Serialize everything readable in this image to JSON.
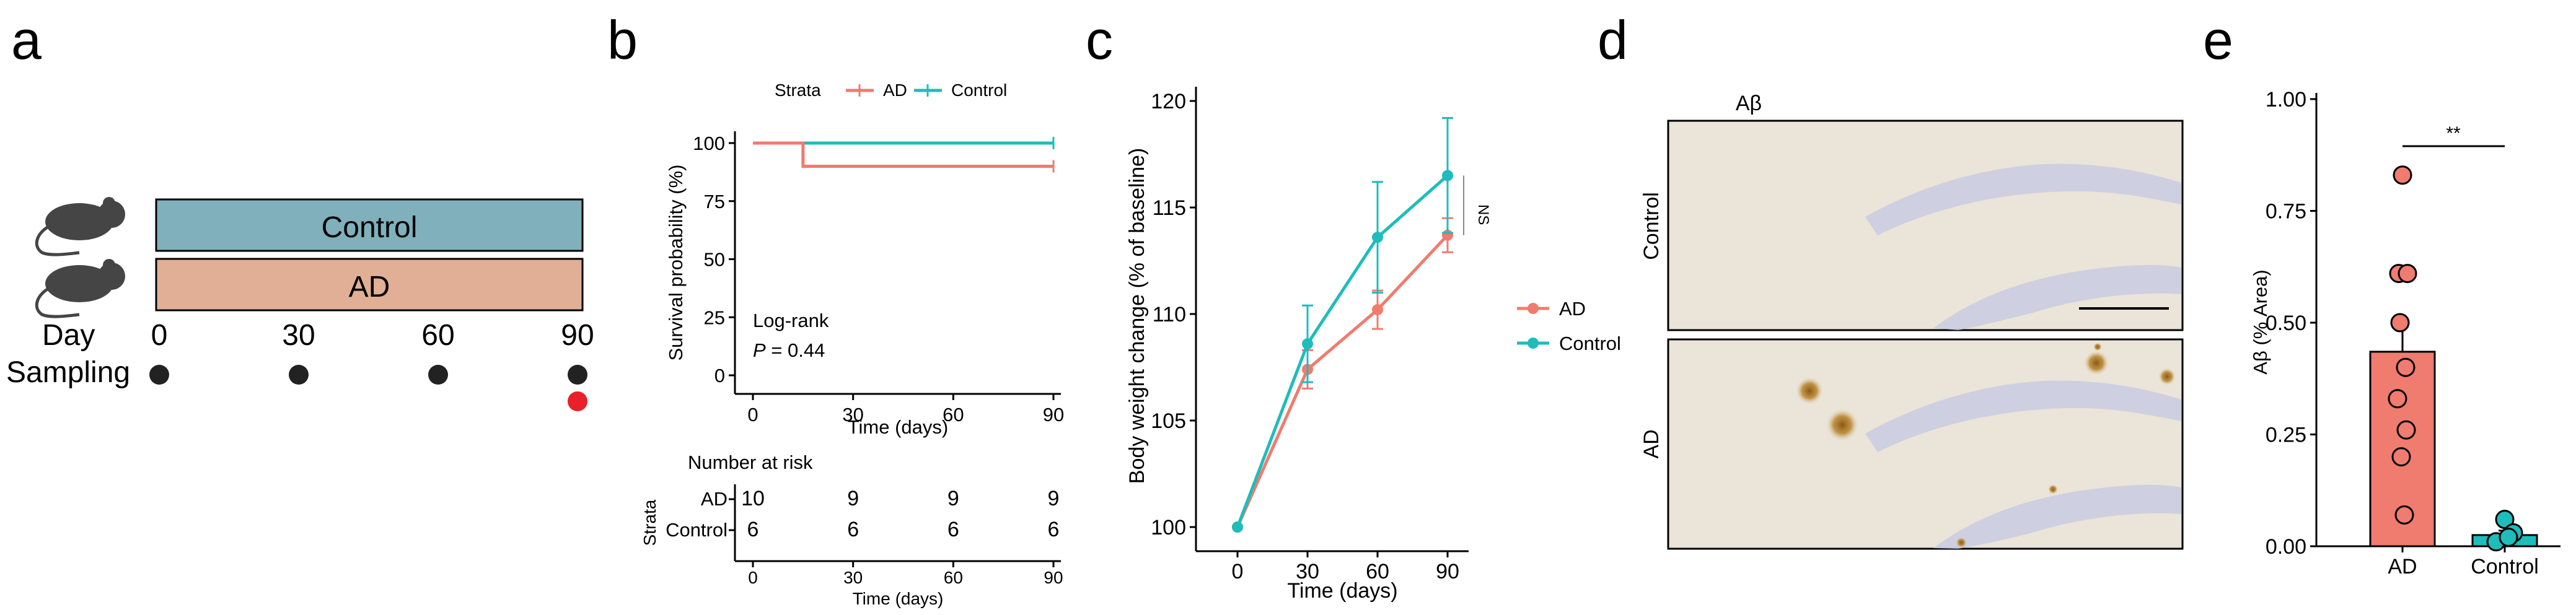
{
  "panels": {
    "a": {
      "letter": "a",
      "groups": [
        {
          "name": "Control",
          "color": "#7fb0bb"
        },
        {
          "name": "AD",
          "color": "#e1af95"
        }
      ],
      "day_label": "Day",
      "sampling_label": "Sampling",
      "days": [
        "0",
        "30",
        "60",
        "90"
      ],
      "sampling_dot_color": "#222222",
      "endpoint_dot_color": "#e8202a"
    },
    "b": {
      "letter": "b",
      "legend": {
        "title": "Strata",
        "items": [
          "AD",
          "Control"
        ]
      },
      "pvalue_title": "Log-rank",
      "pvalue_prefix": "P",
      "pvalue_suffix": " = 0.44",
      "risk_title": "Number at risk",
      "risk_rows": [
        {
          "name": "AD",
          "values": [
            "10",
            "9",
            "9",
            "9"
          ]
        },
        {
          "name": "Control",
          "values": [
            "6",
            "6",
            "6",
            "6"
          ]
        }
      ],
      "risk_strata_label": "Strata",
      "risk_xlabel": "Time (days)"
    },
    "c": {
      "letter": "c",
      "ns_label": "NS"
    },
    "d": {
      "letter": "d",
      "title": "Aβ",
      "rows": [
        "Control",
        "AD"
      ]
    },
    "e": {
      "letter": "e",
      "sig_label": "**"
    }
  },
  "chart_data": [
    {
      "id": "b-survival",
      "type": "line",
      "title": "",
      "xlabel": "Time (days)",
      "ylabel": "Survival probability (%)",
      "xlim": [
        0,
        90
      ],
      "ylim": [
        0,
        100
      ],
      "xticks": [
        "0",
        "30",
        "60",
        "90"
      ],
      "yticks": [
        "0",
        "25",
        "50",
        "75",
        "100"
      ],
      "series": [
        {
          "name": "AD",
          "color": "#f07b6f",
          "step_x": [
            0,
            15,
            90
          ],
          "step_y": [
            100,
            90,
            90
          ]
        },
        {
          "name": "Control",
          "color": "#1fbcbc",
          "step_x": [
            0,
            90
          ],
          "step_y": [
            100,
            100
          ]
        }
      ]
    },
    {
      "id": "c-bodyweight",
      "type": "line",
      "xlabel": "Time (days)",
      "ylabel": "Body weight change (% of baseline)",
      "x": [
        0,
        30,
        60,
        90
      ],
      "xticks": [
        "0",
        "30",
        "60",
        "90"
      ],
      "yticks": [
        "100",
        "105",
        "110",
        "115",
        "120"
      ],
      "ylim": [
        100,
        120
      ],
      "series": [
        {
          "name": "AD",
          "color": "#f07b6f",
          "values": [
            100.0,
            107.4,
            110.2,
            113.7
          ],
          "err": [
            0,
            0.9,
            0.9,
            0.8
          ]
        },
        {
          "name": "Control",
          "color": "#1fbcbc",
          "values": [
            100.0,
            108.6,
            113.6,
            116.5
          ],
          "err": [
            0,
            1.8,
            2.6,
            2.7
          ]
        }
      ]
    },
    {
      "id": "e-abeta",
      "type": "bar",
      "xlabel": "",
      "ylabel": "Aβ (% Area)",
      "categories": [
        "AD",
        "Control"
      ],
      "values": [
        0.435,
        0.025
      ],
      "err": [
        0.06,
        0.01
      ],
      "colors": [
        "#f07b6f",
        "#1fbcbc"
      ],
      "ylim": [
        0,
        1.0
      ],
      "yticks": [
        "0.00",
        "0.25",
        "0.50",
        "0.75",
        "1.00"
      ],
      "points": [
        [
          0.83,
          0.61,
          0.61,
          0.5,
          0.4,
          0.33,
          0.26,
          0.2,
          0.07
        ],
        [
          0.06,
          0.03,
          0.01,
          0.02
        ]
      ]
    }
  ]
}
